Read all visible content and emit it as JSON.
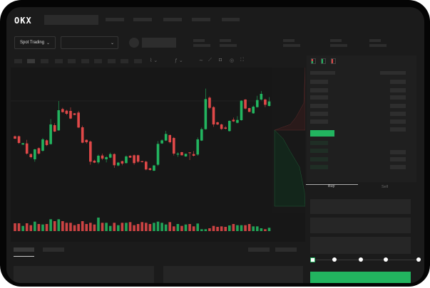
{
  "header": {
    "logo": "OKX",
    "nav_items": [
      "",
      "",
      "",
      "",
      ""
    ]
  },
  "toolbar": {
    "market_dropdown": "Spot Trading",
    "pair_dropdown": ""
  },
  "order_form": {
    "tabs": [
      {
        "label": "Buy",
        "active": true
      },
      {
        "label": "Sell",
        "active": false
      }
    ],
    "leverage_steps": 5,
    "selected_step": 0
  },
  "colors": {
    "up": "#22b45f",
    "down": "#e04848",
    "accent": "#22b45f"
  },
  "chart_data": {
    "type": "candlestick",
    "candles": [
      [
        485,
        488,
        473,
        475
      ],
      [
        485,
        488,
        453,
        457
      ],
      [
        450,
        457,
        449,
        456
      ],
      [
        455,
        470,
        408,
        412
      ],
      [
        410,
        413,
        392,
        397
      ],
      [
        388,
        432,
        378,
        430
      ],
      [
        435,
        438,
        408,
        412
      ],
      [
        424,
        478,
        420,
        472
      ],
      [
        468,
        472,
        444,
        448
      ],
      [
        452,
        558,
        450,
        535
      ],
      [
        532,
        540,
        503,
        505
      ],
      [
        510,
        634,
        508,
        595
      ],
      [
        600,
        605,
        585,
        587
      ],
      [
        593,
        597,
        575,
        580
      ],
      [
        592,
        607,
        557,
        560
      ],
      [
        582,
        583,
        574,
        575
      ],
      [
        585,
        592,
        520,
        522
      ],
      [
        523,
        530,
        456,
        458
      ],
      [
        470,
        472,
        454,
        460
      ],
      [
        463,
        467,
        365,
        378
      ],
      [
        382,
        386,
        372,
        374
      ],
      [
        375,
        408,
        368,
        403
      ],
      [
        404,
        412,
        385,
        391
      ],
      [
        388,
        402,
        375,
        397
      ],
      [
        395,
        416,
        393,
        410
      ],
      [
        410,
        413,
        352,
        363
      ],
      [
        362,
        377,
        358,
        374
      ],
      [
        380,
        382,
        363,
        370
      ],
      [
        372,
        405,
        370,
        400
      ],
      [
        403,
        405,
        394,
        395
      ],
      [
        405,
        408,
        365,
        372
      ],
      [
        405,
        407,
        373,
        378
      ],
      [
        380,
        381,
        375,
        376
      ],
      [
        378,
        382,
        342,
        345
      ],
      [
        350,
        352,
        340,
        343
      ],
      [
        340,
        364,
        338,
        362
      ],
      [
        365,
        465,
        360,
        453
      ],
      [
        455,
        472,
        453,
        468
      ],
      [
        467,
        508,
        465,
        495
      ],
      [
        490,
        493,
        455,
        460
      ],
      [
        478,
        482,
        404,
        412
      ],
      [
        408,
        418,
        398,
        412
      ],
      [
        418,
        419,
        404,
        405
      ],
      [
        400,
        412,
        399,
        411
      ],
      [
        417,
        418,
        385,
        414
      ],
      [
        410,
        423,
        400,
        403
      ],
      [
        408,
        480,
        403,
        472
      ],
      [
        467,
        522,
        465,
        515
      ],
      [
        515,
        686,
        513,
        642
      ],
      [
        648,
        653,
        600,
        605
      ],
      [
        608,
        612,
        525,
        535
      ],
      [
        544,
        547,
        532,
        535
      ],
      [
        535,
        538,
        512,
        516
      ],
      [
        522,
        528,
        514,
        517
      ],
      [
        507,
        552,
        505,
        550
      ],
      [
        555,
        564,
        545,
        548
      ],
      [
        542,
        570,
        540,
        554
      ],
      [
        553,
        637,
        551,
        635
      ],
      [
        640,
        642,
        598,
        602
      ],
      [
        604,
        605,
        587,
        588
      ],
      [
        582,
        615,
        580,
        610
      ],
      [
        608,
        656,
        606,
        638
      ],
      [
        640,
        676,
        636,
        664
      ],
      [
        640,
        644,
        608,
        618
      ],
      [
        613,
        650,
        611,
        632
      ]
    ],
    "volumes": [
      33,
      33,
      22,
      33,
      25,
      40,
      30,
      28,
      30,
      50,
      42,
      50,
      42,
      35,
      35,
      25,
      30,
      42,
      30,
      35,
      28,
      57,
      35,
      35,
      22,
      35,
      25,
      35,
      35,
      38,
      25,
      30,
      38,
      35,
      30,
      35,
      40,
      35,
      28,
      38,
      20,
      30,
      22,
      28,
      30,
      20,
      32,
      8,
      8,
      12,
      22,
      18,
      20,
      18,
      24,
      30,
      25,
      25,
      25,
      30,
      20,
      20,
      12,
      8,
      14
    ]
  }
}
